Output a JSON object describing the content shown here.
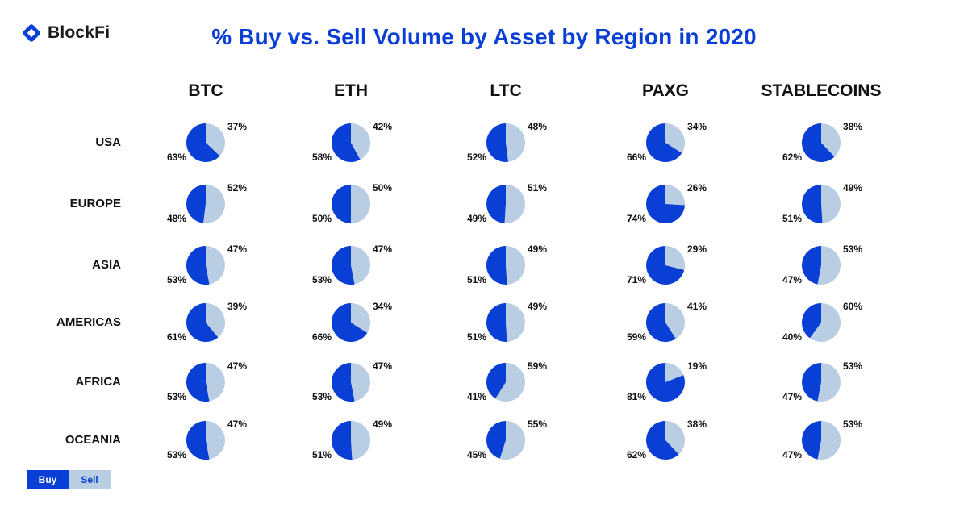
{
  "brand": {
    "name": "BlockFi"
  },
  "colors": {
    "buy": "#0a3fd6",
    "sell": "#b9cde3",
    "title": "#0a3fd6"
  },
  "legend": {
    "buy_label": "Buy",
    "sell_label": "Sell"
  },
  "chart_data": {
    "type": "pie",
    "title": "% Buy vs. Sell Volume by Asset by Region in 2020",
    "series_names": [
      "Buy",
      "Sell"
    ],
    "assets": [
      "BTC",
      "ETH",
      "LTC",
      "PAXG",
      "STABLECOINS"
    ],
    "regions": [
      "USA",
      "EUROPE",
      "ASIA",
      "AMERICAS",
      "AFRICA",
      "OCEANIA"
    ],
    "values": [
      [
        {
          "buy": 63,
          "sell": 37
        },
        {
          "buy": 58,
          "sell": 42
        },
        {
          "buy": 52,
          "sell": 48
        },
        {
          "buy": 66,
          "sell": 34
        },
        {
          "buy": 62,
          "sell": 38
        }
      ],
      [
        {
          "buy": 48,
          "sell": 52
        },
        {
          "buy": 50,
          "sell": 50
        },
        {
          "buy": 49,
          "sell": 51
        },
        {
          "buy": 74,
          "sell": 26
        },
        {
          "buy": 51,
          "sell": 49
        }
      ],
      [
        {
          "buy": 53,
          "sell": 47
        },
        {
          "buy": 53,
          "sell": 47
        },
        {
          "buy": 51,
          "sell": 49
        },
        {
          "buy": 71,
          "sell": 29
        },
        {
          "buy": 47,
          "sell": 53
        }
      ],
      [
        {
          "buy": 61,
          "sell": 39
        },
        {
          "buy": 66,
          "sell": 34
        },
        {
          "buy": 51,
          "sell": 49
        },
        {
          "buy": 59,
          "sell": 41
        },
        {
          "buy": 40,
          "sell": 60
        }
      ],
      [
        {
          "buy": 53,
          "sell": 47
        },
        {
          "buy": 53,
          "sell": 47
        },
        {
          "buy": 41,
          "sell": 59
        },
        {
          "buy": 81,
          "sell": 19
        },
        {
          "buy": 47,
          "sell": 53
        }
      ],
      [
        {
          "buy": 53,
          "sell": 47
        },
        {
          "buy": 51,
          "sell": 49
        },
        {
          "buy": 45,
          "sell": 55
        },
        {
          "buy": 62,
          "sell": 38
        },
        {
          "buy": 47,
          "sell": 53
        }
      ]
    ]
  }
}
